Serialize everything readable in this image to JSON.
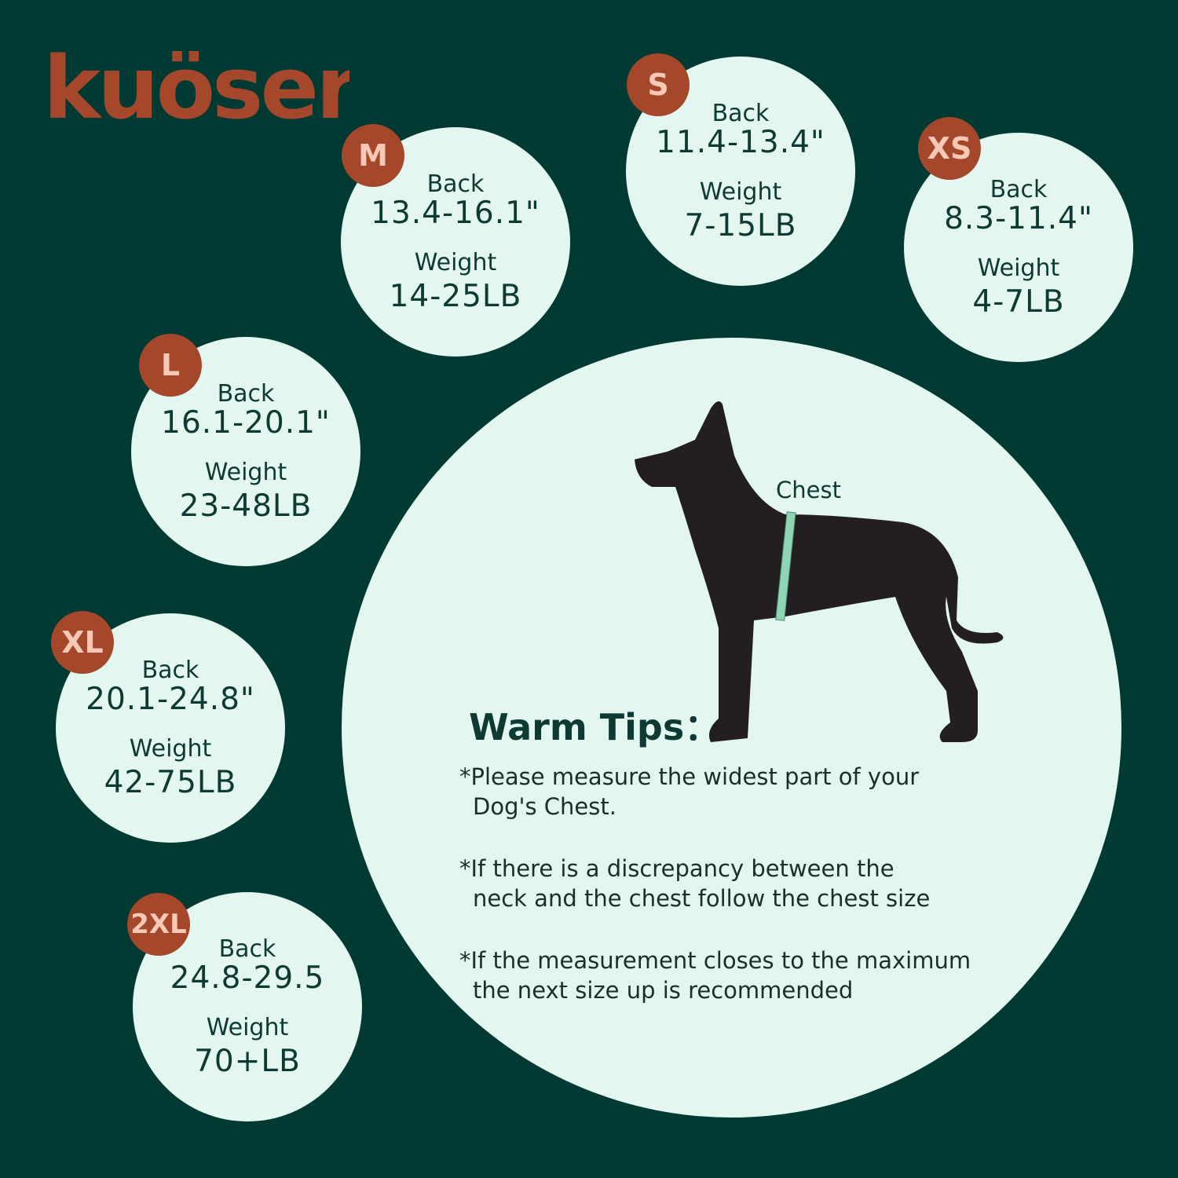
{
  "brand": {
    "logo_text": "kuoser",
    "color": "#a5472a"
  },
  "colors": {
    "background": "#003a32",
    "circle": "#e3f7f0",
    "badge": "#a5472a",
    "badge_text": "#f6c8b6",
    "tape": "#8fd4b4"
  },
  "sizes": [
    {
      "size": "M",
      "back_label": "Back",
      "back": "13.4-16.1\"",
      "weight_label": "Weight",
      "weight": "14-25LB"
    },
    {
      "size": "S",
      "back_label": "Back",
      "back": "11.4-13.4\"",
      "weight_label": "Weight",
      "weight": "7-15LB"
    },
    {
      "size": "XS",
      "back_label": "Back",
      "back": "8.3-11.4\"",
      "weight_label": "Weight",
      "weight": "4-7LB"
    },
    {
      "size": "L",
      "back_label": "Back",
      "back": "16.1-20.1\"",
      "weight_label": "Weight",
      "weight": "23-48LB"
    },
    {
      "size": "XL",
      "back_label": "Back",
      "back": "20.1-24.8\"",
      "weight_label": "Weight",
      "weight": "42-75LB"
    },
    {
      "size": "2XL",
      "back_label": "Back",
      "back": "24.8-29.5",
      "weight_label": "Weight",
      "weight": "70+LB"
    }
  ],
  "diagram": {
    "chest_label": "Chest"
  },
  "tips": {
    "title": "Warm Tips：",
    "items": [
      {
        "line1": "*Please measure the widest part of your",
        "line2": "Dog's Chest."
      },
      {
        "line1": "*If there is a discrepancy between the",
        "line2": "neck and the chest follow the chest size"
      },
      {
        "line1": "*If the measurement closes to the maximum",
        "line2": "the next size up is recommended"
      }
    ]
  }
}
